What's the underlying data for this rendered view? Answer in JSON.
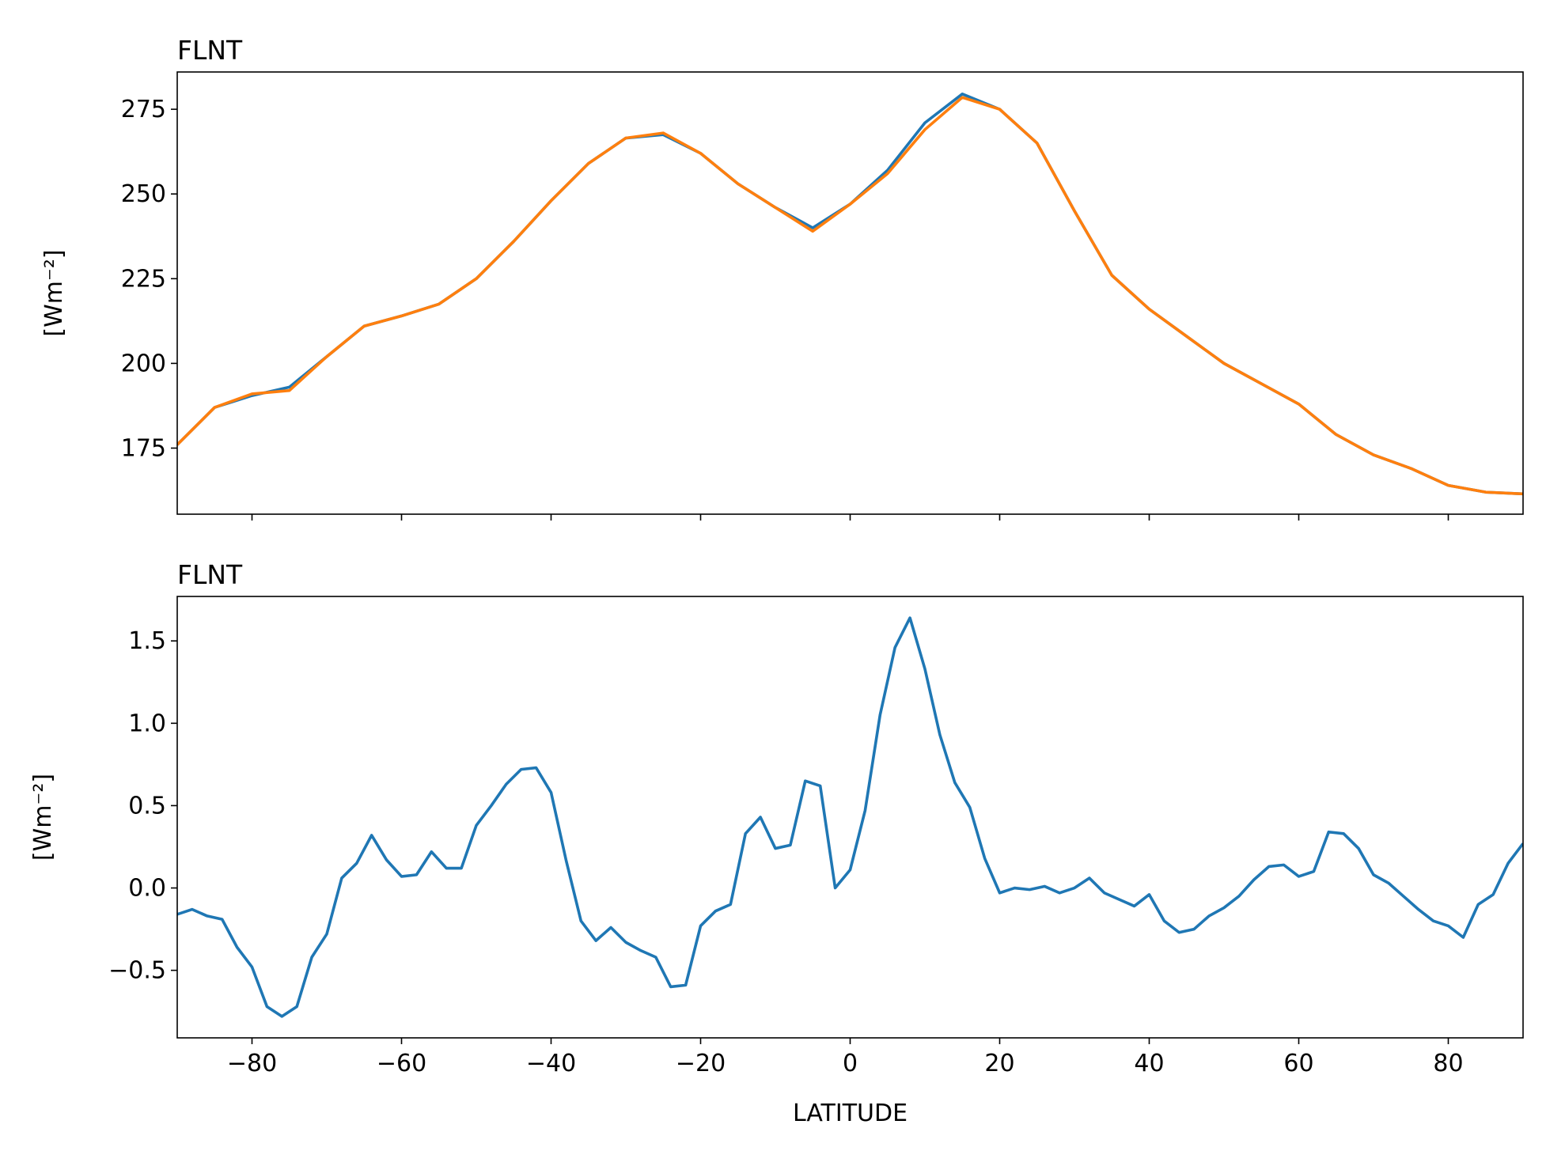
{
  "chart_data": [
    {
      "type": "line",
      "title": "FLNT",
      "y_label": "[Wm⁻²]",
      "x": [
        -90,
        -85,
        -80,
        -75,
        -70,
        -65,
        -60,
        -55,
        -50,
        -45,
        -40,
        -35,
        -30,
        -25,
        -20,
        -15,
        -10,
        -5,
        0,
        5,
        10,
        15,
        20,
        25,
        30,
        35,
        40,
        45,
        50,
        55,
        60,
        65,
        70,
        75,
        80,
        85,
        90
      ],
      "series": [
        {
          "color": "#1f77b4",
          "values": [
            176,
            187,
            190.5,
            193,
            202,
            211,
            214,
            217.5,
            225,
            236,
            248,
            259,
            266.5,
            267.5,
            262,
            253,
            246,
            240,
            247,
            257,
            271,
            279.5,
            275,
            265,
            245,
            226,
            216,
            208,
            200,
            194,
            188,
            179,
            173,
            169,
            164,
            162,
            161.5
          ]
        },
        {
          "color": "#ff7f0e",
          "values": [
            176,
            187,
            191,
            192,
            202,
            211,
            214,
            217.5,
            225,
            236,
            248,
            259,
            266.5,
            268,
            262,
            253,
            246,
            239,
            247,
            256,
            269,
            278.5,
            275,
            265,
            245,
            226,
            216,
            208,
            200,
            194,
            188,
            179,
            173,
            169,
            164,
            162,
            161.5
          ]
        }
      ],
      "xlim": [
        -90,
        90
      ],
      "ylim": [
        155.5,
        286
      ],
      "yticks": [
        175,
        200,
        225,
        250,
        275
      ]
    },
    {
      "type": "line",
      "title": "FLNT",
      "y_label": "[Wm⁻²]",
      "x_label": "LATITUDE",
      "x": [
        -90,
        -88,
        -86,
        -84,
        -82,
        -80,
        -78,
        -76,
        -74,
        -72,
        -70,
        -68,
        -66,
        -64,
        -62,
        -60,
        -58,
        -56,
        -54,
        -52,
        -50,
        -48,
        -46,
        -44,
        -42,
        -40,
        -38,
        -36,
        -34,
        -32,
        -30,
        -28,
        -26,
        -24,
        -22,
        -20,
        -18,
        -16,
        -14,
        -12,
        -10,
        -8,
        -6,
        -4,
        -2,
        0,
        2,
        4,
        6,
        8,
        10,
        12,
        14,
        16,
        18,
        20,
        22,
        24,
        26,
        28,
        30,
        32,
        34,
        36,
        38,
        40,
        42,
        44,
        46,
        48,
        50,
        52,
        54,
        56,
        58,
        60,
        62,
        64,
        66,
        68,
        70,
        72,
        74,
        76,
        78,
        80,
        82,
        84,
        86,
        88,
        90
      ],
      "series": [
        {
          "color": "#1f77b4",
          "values": [
            -0.16,
            -0.13,
            -0.17,
            -0.19,
            -0.36,
            -0.48,
            -0.72,
            -0.78,
            -0.72,
            -0.42,
            -0.28,
            0.06,
            0.15,
            0.32,
            0.17,
            0.07,
            0.08,
            0.22,
            0.12,
            0.12,
            0.38,
            0.5,
            0.63,
            0.72,
            0.73,
            0.58,
            0.17,
            -0.2,
            -0.32,
            -0.24,
            -0.33,
            -0.38,
            -0.42,
            -0.6,
            -0.59,
            -0.23,
            -0.14,
            -0.1,
            0.33,
            0.43,
            0.24,
            0.26,
            0.65,
            0.62,
            0.0,
            0.11,
            0.47,
            1.05,
            1.46,
            1.64,
            1.33,
            0.93,
            0.64,
            0.49,
            0.18,
            -0.03,
            0.0,
            -0.01,
            0.01,
            -0.03,
            0.0,
            0.06,
            -0.03,
            -0.07,
            -0.11,
            -0.04,
            -0.2,
            -0.27,
            -0.25,
            -0.17,
            -0.12,
            -0.05,
            0.05,
            0.13,
            0.14,
            0.07,
            0.1,
            0.34,
            0.33,
            0.24,
            0.08,
            0.03,
            -0.05,
            -0.13,
            -0.2,
            -0.23,
            -0.3,
            -0.1,
            -0.04,
            0.15,
            0.27
          ]
        }
      ],
      "xlim": [
        -90,
        90
      ],
      "ylim": [
        -0.91,
        1.77
      ],
      "xticks": [
        {
          "value": -80,
          "label": "−80"
        },
        {
          "value": -60,
          "label": "−60"
        },
        {
          "value": -40,
          "label": "−40"
        },
        {
          "value": -20,
          "label": "−20"
        },
        0,
        20,
        40,
        60,
        80
      ],
      "yticks": [
        {
          "value": -0.5,
          "label": "−0.5"
        },
        {
          "value": 0,
          "label": "0.0"
        },
        0.5,
        {
          "value": 1,
          "label": "1.0"
        },
        1.5
      ]
    }
  ]
}
